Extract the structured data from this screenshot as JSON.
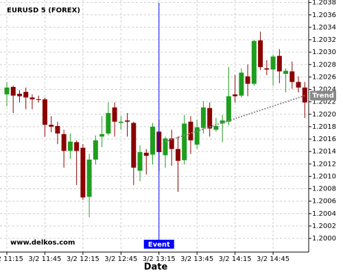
{
  "chart_data": {
    "type": "candlestick",
    "title": "EURUSD 5 (FOREX)",
    "x_label": "Date",
    "watermark": "www.delkos.com",
    "categories": [
      "3/2 11:15",
      null,
      null,
      null,
      null,
      null,
      "3/2 11:45",
      null,
      null,
      null,
      null,
      null,
      "3/2 12:15",
      null,
      null,
      null,
      null,
      null,
      "3/2 12:45",
      null,
      null,
      null,
      null,
      null,
      "3/2 13:15",
      null,
      null,
      null,
      null,
      null,
      "3/2 13:45",
      null,
      null,
      null,
      null,
      null,
      "3/2 14:15",
      null,
      null,
      null,
      null,
      null,
      "3/2 14:45",
      null,
      null,
      null,
      null,
      null
    ],
    "open": [
      1.20232,
      1.20244,
      1.20233,
      1.20236,
      1.20227,
      1.20224,
      1.20224,
      1.20183,
      1.20181,
      1.20168,
      1.20141,
      1.20155,
      1.20146,
      1.20067,
      1.20127,
      1.20164,
      1.20169,
      1.20211,
      1.20186,
      1.2019,
      1.20186,
      1.20109,
      1.20138,
      1.20135,
      1.20172,
      1.20134,
      1.20161,
      1.20144,
      1.20126,
      1.20188,
      1.20151,
      1.20178,
      1.2021,
      1.20175,
      1.20185,
      1.20188,
      1.20232,
      1.2023,
      1.20261,
      1.20249,
      1.20319,
      1.20274,
      1.20272,
      1.20294,
      1.20265,
      1.20269,
      1.20252,
      1.20243
    ],
    "high": [
      1.20252,
      1.20246,
      1.20239,
      1.20243,
      1.20232,
      1.2023,
      1.20227,
      1.20197,
      1.20188,
      1.20175,
      1.20169,
      1.20158,
      1.20152,
      1.20136,
      1.20166,
      1.20197,
      1.20219,
      1.20219,
      1.20197,
      1.20202,
      1.20188,
      1.2015,
      1.20144,
      1.20186,
      1.20191,
      1.20164,
      1.20175,
      1.20164,
      1.20199,
      1.20197,
      1.20191,
      1.20221,
      1.20219,
      1.20194,
      1.20199,
      1.20276,
      1.20263,
      1.20274,
      1.2028,
      1.2032,
      1.20333,
      1.20287,
      1.20296,
      1.20305,
      1.20274,
      1.20285,
      1.20261,
      1.20252
    ],
    "low": [
      1.20213,
      1.20202,
      1.20219,
      1.20208,
      1.20208,
      1.20219,
      1.20164,
      1.20171,
      1.20152,
      1.20114,
      1.20128,
      1.20086,
      1.20062,
      1.20034,
      1.20119,
      1.20147,
      1.20166,
      1.20164,
      1.20175,
      1.20164,
      1.20086,
      1.20092,
      1.20103,
      1.20119,
      1.20108,
      1.20114,
      1.20117,
      1.20075,
      1.20119,
      1.20136,
      1.20144,
      1.20169,
      1.20164,
      1.20172,
      1.20155,
      1.20182,
      1.20219,
      1.20227,
      1.20229,
      1.20246,
      1.20271,
      1.20263,
      1.20246,
      1.2025,
      1.20235,
      1.20241,
      1.20235,
      1.20194
    ],
    "close": [
      1.20243,
      1.2023,
      1.20229,
      1.20227,
      1.20224,
      1.20223,
      1.20183,
      1.2018,
      1.20169,
      1.20141,
      1.20156,
      1.20141,
      1.20066,
      1.20127,
      1.20158,
      1.20168,
      1.20202,
      1.20188,
      1.20188,
      1.20188,
      1.20114,
      1.20139,
      1.20133,
      1.2018,
      1.20139,
      1.20161,
      1.20144,
      1.20125,
      1.20185,
      1.20158,
      1.20179,
      1.20211,
      1.20177,
      1.20181,
      1.2019,
      1.20229,
      1.20229,
      1.20267,
      1.20249,
      1.20318,
      1.20276,
      1.20272,
      1.20293,
      1.20269,
      1.2027,
      1.20252,
      1.20243,
      1.20219
    ],
    "up_color": "#1e9e1e",
    "down_color": "#8b0000",
    "ylim": [
      1.19978,
      1.20384
    ],
    "yticks": [
      {
        "value": 1.2,
        "label": "1.2000"
      },
      {
        "value": 1.2002,
        "label": "1.2002"
      },
      {
        "value": 1.2004,
        "label": "1.2004"
      },
      {
        "value": 1.2006,
        "label": "1.2006"
      },
      {
        "value": 1.2008,
        "label": "1.2008"
      },
      {
        "value": 1.201,
        "label": "1.2010"
      },
      {
        "value": 1.2012,
        "label": "1.2012"
      },
      {
        "value": 1.2014,
        "label": "1.2014"
      },
      {
        "value": 1.2016,
        "label": "1.2016"
      },
      {
        "value": 1.2018,
        "label": "1.2018"
      },
      {
        "value": 1.202,
        "label": "1.2020"
      },
      {
        "value": 1.2022,
        "label": "1.2022"
      },
      {
        "value": 1.2024,
        "label": "1.2024"
      },
      {
        "value": 1.2026,
        "label": "1.2026"
      },
      {
        "value": 1.2028,
        "label": "1.2028"
      },
      {
        "value": 1.203,
        "label": "1.2030"
      },
      {
        "value": 1.2032,
        "label": "1.2032"
      },
      {
        "value": 1.2034,
        "label": "1.2034"
      },
      {
        "value": 1.2036,
        "label": "1.2036"
      },
      {
        "value": 1.2038,
        "label": "1.2038"
      }
    ],
    "grid": true,
    "event": {
      "label": "Event",
      "category": "3/2 13:15",
      "color": "#0000ff"
    },
    "trend": {
      "label": "Trend",
      "index": [
        25,
        47
      ],
      "values": [
        1.20156,
        1.2023
      ],
      "color": "#888888"
    }
  }
}
